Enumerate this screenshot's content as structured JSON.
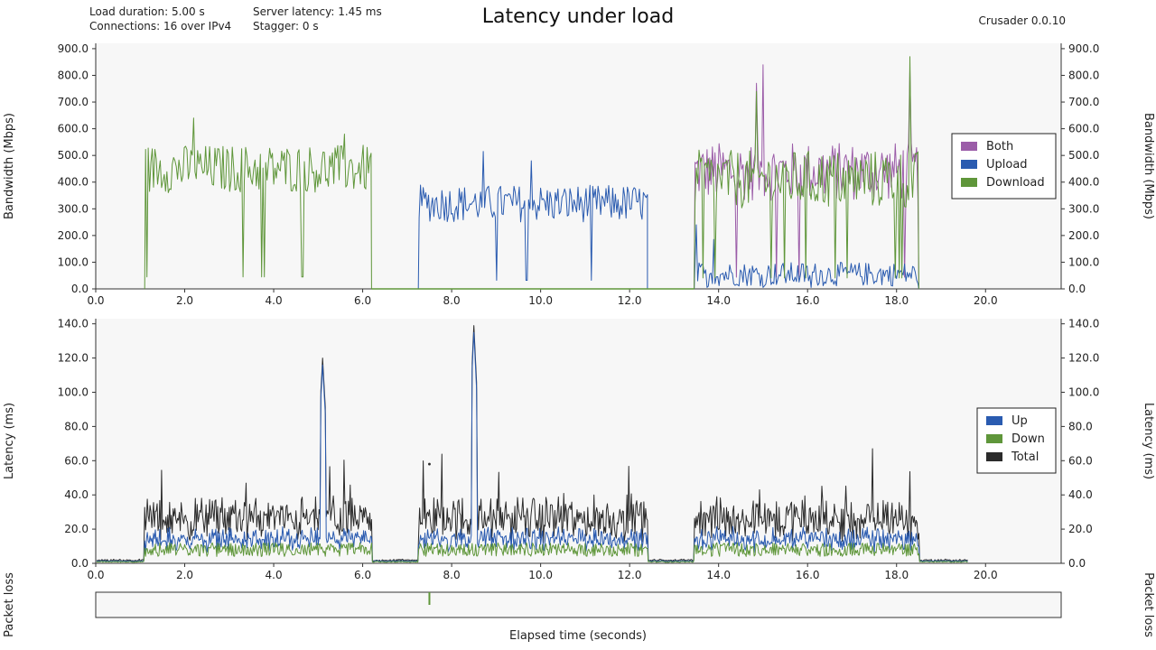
{
  "header": {
    "title": "Latency under load",
    "load_duration": "Load duration: 5.00 s",
    "connections": "Connections: 16 over IPv4",
    "server_latency": "Server latency: 1.45 ms",
    "stagger": "Stagger: 0 s",
    "version": "Crusader 0.0.10"
  },
  "colors": {
    "both": "#9b5ca8",
    "upload": "#2a5bb0",
    "download": "#5f963a",
    "total": "#2b2b2b",
    "plot_bg": "#f7f7f7"
  },
  "chart_data": [
    {
      "type": "line",
      "name": "bandwidth",
      "xlabel": "",
      "ylabel": "Bandwidth (Mbps)",
      "ylabel_right": "Bandwidth (Mbps)",
      "xlim": [
        0,
        21.7
      ],
      "ylim": [
        0,
        920
      ],
      "xticks": [
        "0.0",
        "2.0",
        "4.0",
        "6.0",
        "8.0",
        "10.0",
        "12.0",
        "14.0",
        "16.0",
        "18.0",
        "20.0"
      ],
      "yticks": [
        "0.0",
        "100.0",
        "200.0",
        "300.0",
        "400.0",
        "500.0",
        "600.0",
        "700.0",
        "800.0",
        "900.0"
      ],
      "legend_position": "right",
      "series": [
        {
          "name": "Both",
          "key": "both",
          "color": "#9b5ca8",
          "segments": [
            {
              "start": 13.45,
              "end": 18.5,
              "base": 440,
              "amp": 110,
              "peaks": [
                [
                  14.85,
                  770
                ],
                [
                  15.0,
                  840
                ],
                [
                  18.3,
                  820
                ]
              ]
            }
          ]
        },
        {
          "name": "Upload",
          "key": "upload",
          "color": "#2a5bb0",
          "segments": [
            {
              "start": 7.25,
              "end": 12.4,
              "base": 320,
              "amp": 70,
              "peaks": [
                [
                  8.7,
                  515
                ],
                [
                  9.8,
                  480
                ]
              ]
            },
            {
              "start": 13.45,
              "end": 18.5,
              "base": 55,
              "amp": 45,
              "peaks": [
                [
                  13.5,
                  240
                ],
                [
                  13.9,
                  185
                ]
              ]
            }
          ]
        },
        {
          "name": "Download",
          "key": "download",
          "color": "#5f963a",
          "segments": [
            {
              "start": 1.1,
              "end": 6.2,
              "base": 450,
              "amp": 90,
              "peaks": [
                [
                  2.2,
                  640
                ],
                [
                  5.6,
                  580
                ]
              ]
            },
            {
              "start": 13.45,
              "end": 18.5,
              "base": 410,
              "amp": 110,
              "peaks": [
                [
                  14.85,
                  740
                ],
                [
                  18.3,
                  870
                ]
              ]
            }
          ]
        }
      ]
    },
    {
      "type": "line",
      "name": "latency",
      "xlabel": "Elapsed time (seconds)",
      "ylabel": "Latency (ms)",
      "ylabel_right": "Latency (ms)",
      "xlim": [
        0,
        21.7
      ],
      "ylim": [
        0,
        143
      ],
      "xticks": [
        "0.0",
        "2.0",
        "4.0",
        "6.0",
        "8.0",
        "10.0",
        "12.0",
        "14.0",
        "16.0",
        "18.0",
        "20.0"
      ],
      "yticks": [
        "0.0",
        "20.0",
        "40.0",
        "60.0",
        "80.0",
        "100.0",
        "120.0",
        "140.0"
      ],
      "legend_position": "right",
      "series": [
        {
          "name": "Up",
          "key": "upload",
          "color": "#2a5bb0"
        },
        {
          "name": "Down",
          "key": "download",
          "color": "#5f963a"
        },
        {
          "name": "Total",
          "key": "total",
          "color": "#2b2b2b"
        }
      ],
      "active_ranges": [
        [
          1.1,
          6.2
        ],
        [
          7.25,
          12.4
        ],
        [
          13.45,
          18.5
        ]
      ],
      "spikes": [
        [
          5.1,
          120
        ],
        [
          8.5,
          139
        ],
        [
          7.5,
          58
        ]
      ],
      "idle_end": 19.6
    },
    {
      "type": "line",
      "name": "packet-loss",
      "ylabel": "Packet loss",
      "ylabel_right": "Packet loss",
      "events": [
        {
          "x": 7.5,
          "direction": "down"
        }
      ]
    }
  ]
}
